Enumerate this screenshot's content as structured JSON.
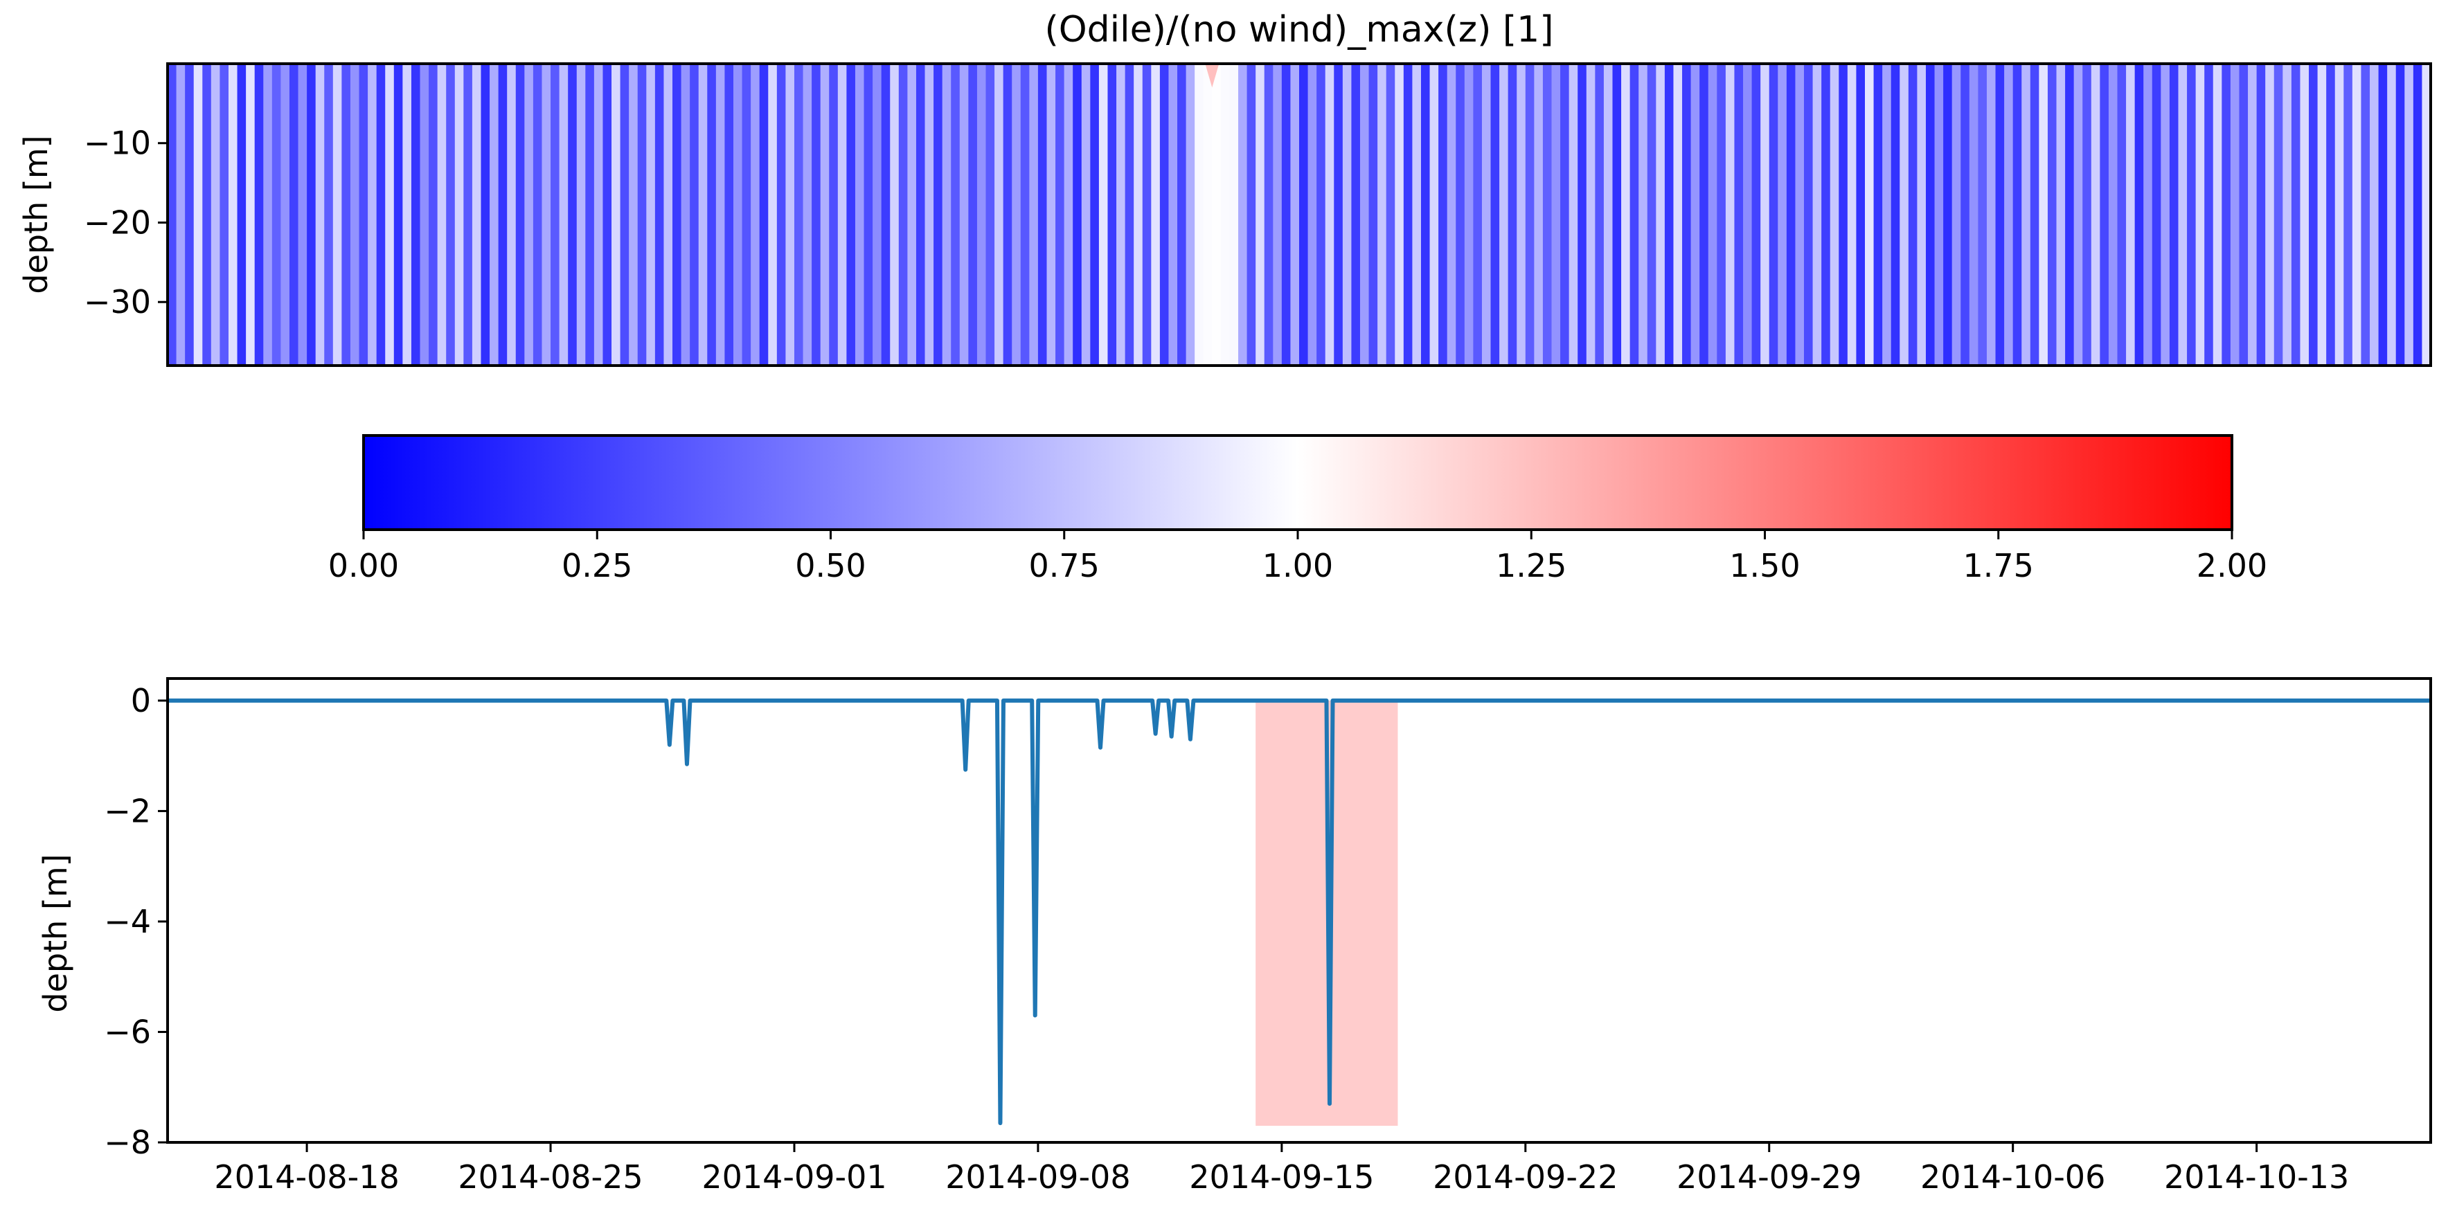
{
  "figure_title": "(Odile)/(no wind)_max(z) [1]",
  "colors": {
    "series_line": "#1f77b4",
    "highlight_span": "#ffcccc",
    "cmap_low": "#0000ff",
    "cmap_mid": "#ffffff",
    "cmap_high": "#ff0000",
    "axes": "#000000"
  },
  "chart_data": [
    {
      "type": "heatmap",
      "title": "(Odile)/(no wind)_max(z) [1]",
      "ylabel": "depth [m]",
      "ylim": [
        -38,
        0
      ],
      "yticks": [
        -10,
        -20,
        -30
      ],
      "ytick_labels": [
        "−10",
        "−20",
        "−30"
      ],
      "xlim": [
        "2014-08-14",
        "2014-10-18"
      ],
      "colormap": "bwr",
      "vmin": 0,
      "vmax": 2,
      "time_steps_per_day": 4,
      "highlight_value": {
        "date": "2014-09-13",
        "value": 1.25,
        "note_depth_top": -3
      }
    },
    {
      "type": "colorbar",
      "orientation": "horizontal",
      "vmin": 0,
      "vmax": 2,
      "ticks": [
        0,
        0.25,
        0.5,
        0.75,
        1.0,
        1.25,
        1.5,
        1.75,
        2.0
      ],
      "tick_labels": [
        "0.00",
        "0.25",
        "0.50",
        "0.75",
        "1.00",
        "1.25",
        "1.50",
        "1.75",
        "2.00"
      ]
    },
    {
      "type": "line",
      "xlabel": "",
      "ylabel": "depth [m]",
      "ylim": [
        -8,
        0.4
      ],
      "yticks": [
        0,
        -2,
        -4,
        -6,
        -8
      ],
      "ytick_labels": [
        "0",
        "−2",
        "−4",
        "−6",
        "−8"
      ],
      "xlim": [
        "2014-08-14",
        "2014-10-18"
      ],
      "xticks": [
        "2014-08-18",
        "2014-08-25",
        "2014-09-01",
        "2014-09-08",
        "2014-09-15",
        "2014-09-22",
        "2014-09-29",
        "2014-10-06",
        "2014-10-13"
      ],
      "xtick_labels": [
        "2014-08-18",
        "2014-08-25",
        "2014-09-01",
        "2014-09-08",
        "2014-09-15",
        "2014-09-22",
        "2014-09-29",
        "2014-10-06",
        "2014-10-13"
      ],
      "baseline": 0,
      "series": [
        {
          "dips": [
            {
              "date": "2014-08-28 10:00",
              "depth": -0.8
            },
            {
              "date": "2014-08-28 22:00",
              "depth": -1.15
            },
            {
              "date": "2014-09-05 22:00",
              "depth": -1.25
            },
            {
              "date": "2014-09-06 22:00",
              "depth": -7.65
            },
            {
              "date": "2014-09-07 22:00",
              "depth": -5.7
            },
            {
              "date": "2014-09-09 19:00",
              "depth": -0.85
            },
            {
              "date": "2014-09-11 09:00",
              "depth": -0.6
            },
            {
              "date": "2014-09-11 20:00",
              "depth": -0.65
            },
            {
              "date": "2014-09-12 09:00",
              "depth": -0.7
            },
            {
              "date": "2014-09-16 09:00",
              "depth": -7.3
            }
          ]
        }
      ],
      "highlight_span": {
        "start": "2014-09-14 06:00",
        "end": "2014-09-18 08:00",
        "ymin": -7.7,
        "ymax": 0
      }
    }
  ]
}
